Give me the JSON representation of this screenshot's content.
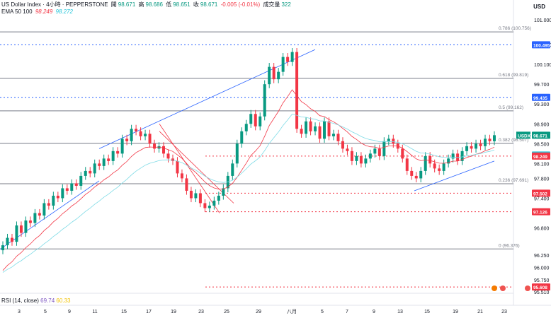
{
  "legend": {
    "symbol": "US Dollar Index · 4小時 · PEPPERSTONE",
    "open_label": "開",
    "open": "98.671",
    "high_label": "高",
    "high": "98.686",
    "low_label": "低",
    "low": "98.651",
    "close_label": "收",
    "close": "98.671",
    "change": "-0.005 (-0.01%)",
    "volume_label": "成交量",
    "volume": "322",
    "ema_label": "EMA 50 100",
    "ema50": "98.249",
    "ema100": "98.272"
  },
  "currency": "USD",
  "rsi": {
    "label": "RSI (14, close)",
    "value": "69.74",
    "ma": "60.33"
  },
  "colors": {
    "up": "#089981",
    "down": "#f23645",
    "ema50": "#f23645",
    "ema100": "#7fdbe6",
    "trend": "#2962ff",
    "fib": "#787b86",
    "level_blue": "#2962ff",
    "level_red": "#f23645"
  },
  "chart_data": {
    "type": "candlestick",
    "title": "US Dollar Index",
    "ylim": [
      95.51,
      101.2
    ],
    "y_ticks": [
      "101.000",
      "100.500",
      "100.100",
      "99.700",
      "99.300",
      "98.900",
      "98.500",
      "98.100",
      "97.800",
      "97.400",
      "96.800",
      "96.250",
      "96.000",
      "95.750",
      "95.510"
    ],
    "x_ticks": [
      "3",
      "5",
      "9",
      "11",
      "15",
      "17",
      "19",
      "23",
      "25",
      "29",
      "八月",
      "5",
      "7",
      "9",
      "13",
      "15",
      "19",
      "21",
      "23"
    ],
    "fib_levels": [
      {
        "label": "0.786 (100.756)",
        "value": 100.756
      },
      {
        "label": "0.618 (99.819)",
        "value": 99.819
      },
      {
        "label": "0.5 (99.162)",
        "value": 99.162
      },
      {
        "label": "0.382 (98.507)",
        "value": 98.507
      },
      {
        "label": "0.236 (97.691)",
        "value": 97.691
      },
      {
        "label": "0 (96.376)",
        "value": 96.376
      }
    ],
    "price_labels": [
      {
        "value": 100.495,
        "label": "100.495",
        "color": "blue"
      },
      {
        "value": 99.435,
        "label": "99.435",
        "color": "blue"
      },
      {
        "value": 98.671,
        "label": "98.671",
        "color": "green",
        "tag": "USDX"
      },
      {
        "value": 98.272,
        "label": "98.272",
        "color": "cyan"
      },
      {
        "value": 98.249,
        "label": "98.249",
        "color": "red"
      },
      {
        "value": 97.502,
        "label": "97.502",
        "color": "red"
      },
      {
        "value": 97.126,
        "label": "97.126",
        "color": "red"
      },
      {
        "value": 95.608,
        "label": "95.608",
        "color": "red"
      }
    ],
    "closes": [
      96.45,
      96.6,
      96.52,
      96.85,
      96.7,
      96.95,
      96.9,
      97.1,
      97.05,
      97.3,
      97.25,
      97.45,
      97.4,
      97.6,
      97.55,
      97.7,
      97.65,
      97.85,
      97.95,
      97.9,
      98.1,
      98.05,
      98.2,
      98.15,
      98.35,
      98.3,
      98.6,
      98.55,
      98.8,
      98.75,
      98.65,
      98.7,
      98.5,
      98.4,
      98.45,
      98.3,
      98.2,
      98.15,
      97.9,
      97.8,
      97.55,
      97.4,
      97.5,
      97.3,
      97.2,
      97.25,
      97.35,
      97.45,
      97.6,
      97.85,
      98.1,
      98.5,
      98.75,
      98.9,
      99.1,
      98.85,
      99.05,
      99.7,
      100.05,
      99.8,
      99.95,
      100.25,
      100.15,
      100.35,
      98.8,
      98.7,
      98.95,
      98.75,
      98.85,
      98.6,
      98.95,
      98.65,
      98.7,
      98.55,
      98.4,
      98.35,
      98.15,
      98.25,
      98.1,
      98.2,
      98.3,
      98.4,
      98.25,
      98.55,
      98.6,
      98.5,
      98.4,
      98.2,
      97.95,
      97.85,
      97.8,
      97.95,
      98.25,
      98.1,
      98.0,
      97.95,
      98.1,
      98.2,
      98.3,
      98.15,
      98.35,
      98.45,
      98.4,
      98.5,
      98.45,
      98.6,
      98.55,
      98.671
    ]
  }
}
